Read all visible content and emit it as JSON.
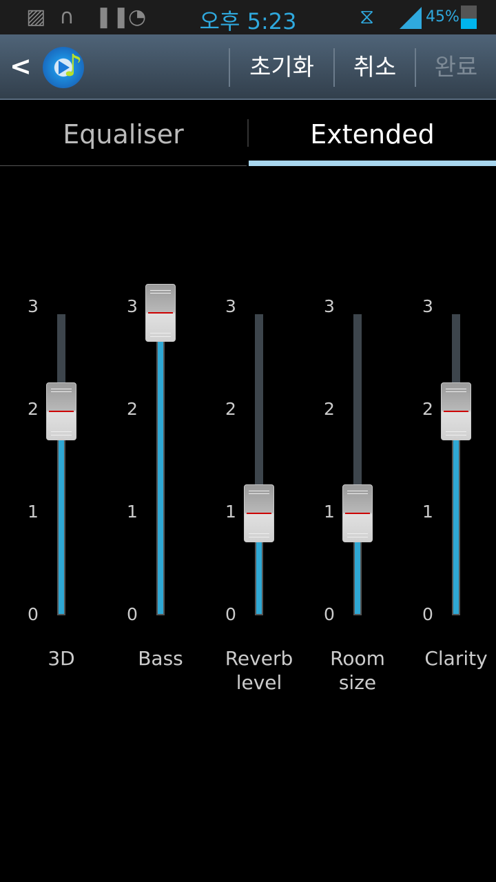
{
  "status_bar": {
    "time": "오후 5:23",
    "battery": "45%",
    "battery_level": 45,
    "icons": [
      "gallery-icon",
      "headphones-icon",
      "pause-icon",
      "clock-icon",
      "mute-vibrate-icon",
      "signal-icon",
      "battery-icon"
    ]
  },
  "header": {
    "reset": "초기화",
    "cancel": "취소",
    "done": "완료"
  },
  "tabs": [
    {
      "label": "Equaliser",
      "selected": false
    },
    {
      "label": "Extended",
      "selected": true
    }
  ],
  "colors": {
    "accent": "#2fa8d4",
    "tab_indicator": "#a8d6ee"
  },
  "sliders": [
    {
      "label": "3D",
      "value": 2
    },
    {
      "label": "Bass",
      "value": 3
    },
    {
      "label": "Reverb\nlevel",
      "value": 1
    },
    {
      "label": "Room\nsize",
      "value": 1
    },
    {
      "label": "Clarity",
      "value": 2
    }
  ],
  "scale": {
    "min": 0,
    "max": 3,
    "ticks": [
      "3",
      "2",
      "1",
      "0"
    ]
  }
}
